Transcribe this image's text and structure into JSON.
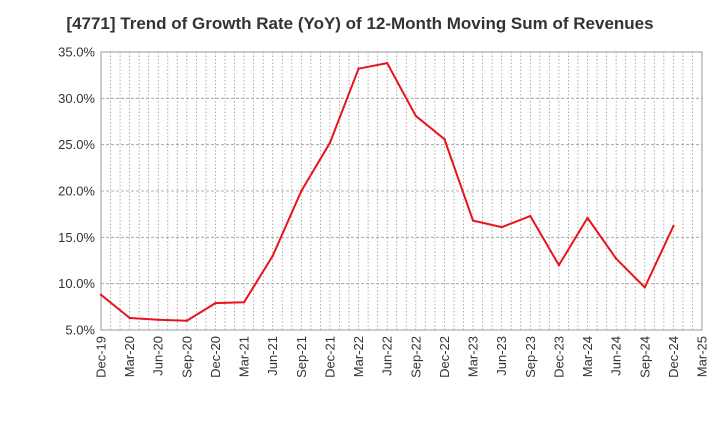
{
  "chart_data": {
    "type": "line",
    "title": "[4771]  Trend of Growth Rate (YoY) of 12-Month Moving Sum of Revenues",
    "xlabel": "",
    "ylabel": "",
    "ylim": [
      5.0,
      35.0
    ],
    "yticks": [
      "5.0%",
      "10.0%",
      "15.0%",
      "20.0%",
      "25.0%",
      "30.0%",
      "35.0%"
    ],
    "categories": [
      "Dec-19",
      "Mar-20",
      "Jun-20",
      "Sep-20",
      "Dec-20",
      "Mar-21",
      "Jun-21",
      "Sep-21",
      "Dec-21",
      "Mar-22",
      "Jun-22",
      "Sep-22",
      "Dec-22",
      "Mar-23",
      "Jun-23",
      "Sep-23",
      "Dec-23",
      "Mar-24",
      "Jun-24",
      "Sep-24",
      "Dec-24",
      "Mar-25"
    ],
    "series": [
      {
        "values": [
          8.8,
          6.3,
          6.1,
          6.0,
          7.9,
          8.0,
          13.0,
          20.0,
          25.2,
          33.2,
          33.8,
          28.1,
          25.6,
          16.8,
          16.1,
          17.3,
          12.0,
          17.1,
          12.7,
          9.6,
          16.2,
          null
        ]
      }
    ],
    "grid": true,
    "legend": "none",
    "line_color": "#e8141b"
  }
}
